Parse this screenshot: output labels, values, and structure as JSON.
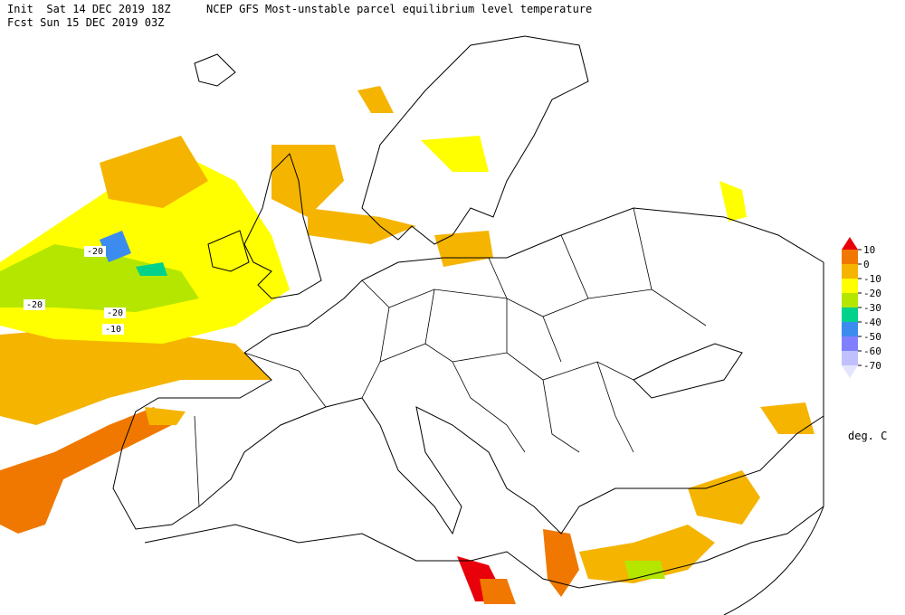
{
  "header": {
    "init": "Init  Sat 14 DEC 2019 18Z",
    "title": "NCEP GFS Most-unstable parcel equilibrium level temperature",
    "forecast": "Fcst Sun 15 DEC 2019 03Z"
  },
  "map": {
    "contour_labels": [
      -20,
      -20,
      -20,
      -10
    ]
  },
  "legend": {
    "levels": [
      10,
      0,
      -10,
      -20,
      -30,
      -40,
      -50,
      -60,
      -70
    ],
    "colors": [
      "#e8000b",
      "#f07800",
      "#f5b400",
      "#ffff00",
      "#b4e600",
      "#00d28c",
      "#3c8cf0",
      "#8080ff",
      "#c0c0ff",
      "#e4e4ff"
    ],
    "unit": "deg. C"
  }
}
